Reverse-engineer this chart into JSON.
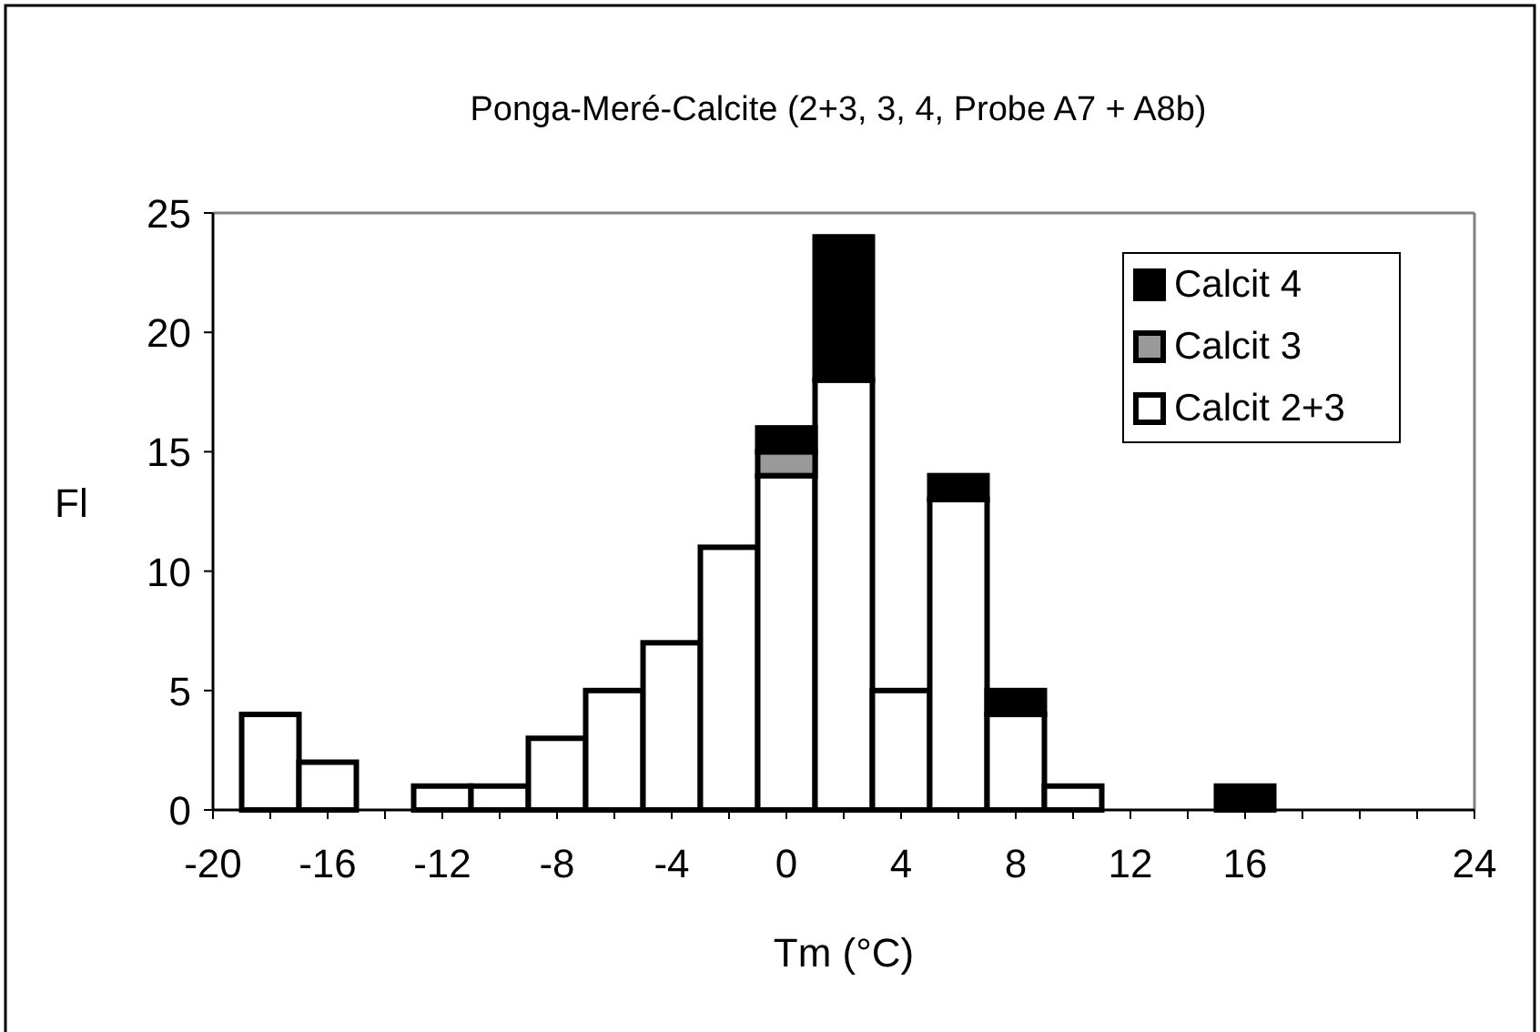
{
  "chart_data": {
    "type": "bar",
    "title": "Ponga-Meré-Calcite (2+3, 3, 4, Probe A7 + A8b)",
    "xlabel": "Tm (°C)",
    "ylabel": "Fl",
    "x": [
      -18,
      -16,
      -14,
      -12,
      -10,
      -8,
      -6,
      -4,
      -2,
      0,
      2,
      4,
      6,
      8,
      10,
      12,
      14,
      16
    ],
    "stacked": true,
    "series": [
      {
        "name": "Calcit 2+3",
        "color": "#ffffff",
        "values": [
          4,
          2,
          0,
          1,
          1,
          3,
          5,
          7,
          11,
          14,
          18,
          5,
          13,
          4,
          1,
          0,
          0,
          0
        ]
      },
      {
        "name": "Calcit 3",
        "color": "#999999",
        "values": [
          null,
          null,
          null,
          null,
          null,
          null,
          null,
          null,
          null,
          1,
          null,
          null,
          null,
          null,
          null,
          null,
          null,
          null
        ]
      },
      {
        "name": "Calcit 4",
        "color": "#000000",
        "values": [
          null,
          null,
          null,
          null,
          null,
          null,
          null,
          null,
          null,
          1,
          6,
          null,
          1,
          1,
          null,
          null,
          null,
          1
        ]
      }
    ],
    "xlim": [
      -20,
      24
    ],
    "xticks": [
      -20,
      {
        "value": -18,
        "label": null
      },
      -16,
      {
        "value": -14,
        "label": null
      },
      -12,
      {
        "value": -10,
        "label": null
      },
      -8,
      {
        "value": -6,
        "label": null
      },
      -4,
      {
        "value": -2,
        "label": null
      },
      0,
      {
        "value": 2,
        "label": null
      },
      4,
      {
        "value": 6,
        "label": null
      },
      8,
      {
        "value": 10,
        "label": null
      },
      12,
      {
        "value": 14,
        "label": null
      },
      16,
      {
        "value": 18,
        "label": null
      },
      {
        "value": 20,
        "label": null
      },
      {
        "value": 22,
        "label": null
      },
      24
    ],
    "ylim": [
      0,
      25
    ],
    "yticks": [
      0,
      5,
      10,
      15,
      20,
      25
    ],
    "grid": false,
    "legend": "top right"
  }
}
